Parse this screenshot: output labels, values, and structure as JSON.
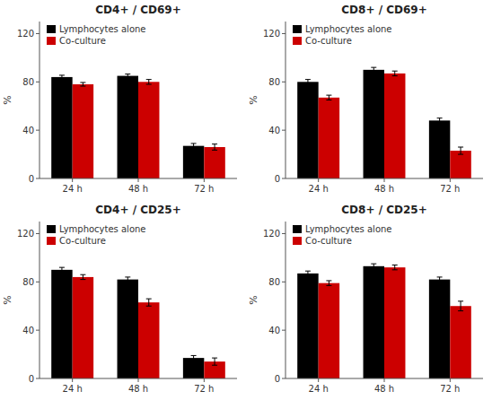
{
  "chart_data": [
    {
      "type": "bar",
      "title": "CD4+ / CD69+",
      "categories": [
        "24 h",
        "48 h",
        "72 h"
      ],
      "series": [
        {
          "name": "Lymphocytes alone",
          "color": "#000000",
          "values": [
            84,
            85,
            27
          ],
          "errors": [
            1.5,
            1.5,
            2
          ]
        },
        {
          "name": "Co-culture",
          "color": "#cc0000",
          "values": [
            78,
            80,
            26
          ],
          "errors": [
            1.5,
            2,
            2.5
          ]
        }
      ],
      "ylabel": "%",
      "ylim": [
        0,
        130
      ],
      "yticks": [
        0,
        40,
        80,
        120
      ],
      "grid": false,
      "legend": "upper left"
    },
    {
      "type": "bar",
      "title": "CD8+ / CD69+",
      "categories": [
        "24 h",
        "48 h",
        "72 h"
      ],
      "series": [
        {
          "name": "Lymphocytes alone",
          "color": "#000000",
          "values": [
            80,
            90,
            48
          ],
          "errors": [
            2,
            2,
            2
          ]
        },
        {
          "name": "Co-culture",
          "color": "#cc0000",
          "values": [
            67,
            87,
            23
          ],
          "errors": [
            2,
            2,
            3
          ]
        }
      ],
      "ylabel": "%",
      "ylim": [
        0,
        130
      ],
      "yticks": [
        0,
        40,
        80,
        120
      ],
      "grid": false,
      "legend": "upper left"
    },
    {
      "type": "bar",
      "title": "CD4+ / CD25+",
      "categories": [
        "24 h",
        "48 h",
        "72 h"
      ],
      "series": [
        {
          "name": "Lymphocytes alone",
          "color": "#000000",
          "values": [
            90,
            82,
            17
          ],
          "errors": [
            2,
            2,
            2
          ]
        },
        {
          "name": "Co-culture",
          "color": "#cc0000",
          "values": [
            84,
            63,
            14
          ],
          "errors": [
            2,
            3,
            3
          ]
        }
      ],
      "ylabel": "%",
      "ylim": [
        0,
        130
      ],
      "yticks": [
        0,
        40,
        80,
        120
      ],
      "grid": false,
      "legend": "upper left"
    },
    {
      "type": "bar",
      "title": "CD8+ / CD25+",
      "categories": [
        "24 h",
        "48 h",
        "72 h"
      ],
      "series": [
        {
          "name": "Lymphocytes alone",
          "color": "#000000",
          "values": [
            87,
            93,
            82
          ],
          "errors": [
            2,
            2,
            2
          ]
        },
        {
          "name": "Co-culture",
          "color": "#cc0000",
          "values": [
            79,
            92,
            60
          ],
          "errors": [
            2,
            2,
            4
          ]
        }
      ],
      "ylabel": "%",
      "ylim": [
        0,
        130
      ],
      "yticks": [
        0,
        40,
        80,
        120
      ],
      "grid": false,
      "legend": "upper left"
    }
  ]
}
